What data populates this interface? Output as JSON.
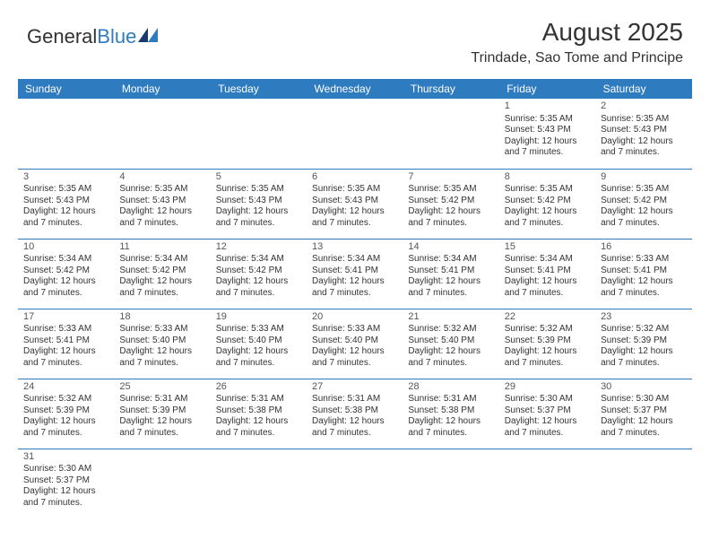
{
  "logo": {
    "text1": "General",
    "text2": "Blue"
  },
  "title": "August 2025",
  "location": "Trindade, Sao Tome and Principe",
  "colors": {
    "header_bg": "#2f7bbf",
    "header_text": "#ffffff",
    "border": "#2f7bbf",
    "text": "#333333",
    "logo_blue": "#2f7bbf"
  },
  "day_headers": [
    "Sunday",
    "Monday",
    "Tuesday",
    "Wednesday",
    "Thursday",
    "Friday",
    "Saturday"
  ],
  "weeks": [
    [
      null,
      null,
      null,
      null,
      null,
      {
        "n": "1",
        "sunrise": "5:35 AM",
        "sunset": "5:43 PM",
        "daylight1": "Daylight: 12 hours",
        "daylight2": "and 7 minutes."
      },
      {
        "n": "2",
        "sunrise": "5:35 AM",
        "sunset": "5:43 PM",
        "daylight1": "Daylight: 12 hours",
        "daylight2": "and 7 minutes."
      }
    ],
    [
      {
        "n": "3",
        "sunrise": "5:35 AM",
        "sunset": "5:43 PM",
        "daylight1": "Daylight: 12 hours",
        "daylight2": "and 7 minutes."
      },
      {
        "n": "4",
        "sunrise": "5:35 AM",
        "sunset": "5:43 PM",
        "daylight1": "Daylight: 12 hours",
        "daylight2": "and 7 minutes."
      },
      {
        "n": "5",
        "sunrise": "5:35 AM",
        "sunset": "5:43 PM",
        "daylight1": "Daylight: 12 hours",
        "daylight2": "and 7 minutes."
      },
      {
        "n": "6",
        "sunrise": "5:35 AM",
        "sunset": "5:43 PM",
        "daylight1": "Daylight: 12 hours",
        "daylight2": "and 7 minutes."
      },
      {
        "n": "7",
        "sunrise": "5:35 AM",
        "sunset": "5:42 PM",
        "daylight1": "Daylight: 12 hours",
        "daylight2": "and 7 minutes."
      },
      {
        "n": "8",
        "sunrise": "5:35 AM",
        "sunset": "5:42 PM",
        "daylight1": "Daylight: 12 hours",
        "daylight2": "and 7 minutes."
      },
      {
        "n": "9",
        "sunrise": "5:35 AM",
        "sunset": "5:42 PM",
        "daylight1": "Daylight: 12 hours",
        "daylight2": "and 7 minutes."
      }
    ],
    [
      {
        "n": "10",
        "sunrise": "5:34 AM",
        "sunset": "5:42 PM",
        "daylight1": "Daylight: 12 hours",
        "daylight2": "and 7 minutes."
      },
      {
        "n": "11",
        "sunrise": "5:34 AM",
        "sunset": "5:42 PM",
        "daylight1": "Daylight: 12 hours",
        "daylight2": "and 7 minutes."
      },
      {
        "n": "12",
        "sunrise": "5:34 AM",
        "sunset": "5:42 PM",
        "daylight1": "Daylight: 12 hours",
        "daylight2": "and 7 minutes."
      },
      {
        "n": "13",
        "sunrise": "5:34 AM",
        "sunset": "5:41 PM",
        "daylight1": "Daylight: 12 hours",
        "daylight2": "and 7 minutes."
      },
      {
        "n": "14",
        "sunrise": "5:34 AM",
        "sunset": "5:41 PM",
        "daylight1": "Daylight: 12 hours",
        "daylight2": "and 7 minutes."
      },
      {
        "n": "15",
        "sunrise": "5:34 AM",
        "sunset": "5:41 PM",
        "daylight1": "Daylight: 12 hours",
        "daylight2": "and 7 minutes."
      },
      {
        "n": "16",
        "sunrise": "5:33 AM",
        "sunset": "5:41 PM",
        "daylight1": "Daylight: 12 hours",
        "daylight2": "and 7 minutes."
      }
    ],
    [
      {
        "n": "17",
        "sunrise": "5:33 AM",
        "sunset": "5:41 PM",
        "daylight1": "Daylight: 12 hours",
        "daylight2": "and 7 minutes."
      },
      {
        "n": "18",
        "sunrise": "5:33 AM",
        "sunset": "5:40 PM",
        "daylight1": "Daylight: 12 hours",
        "daylight2": "and 7 minutes."
      },
      {
        "n": "19",
        "sunrise": "5:33 AM",
        "sunset": "5:40 PM",
        "daylight1": "Daylight: 12 hours",
        "daylight2": "and 7 minutes."
      },
      {
        "n": "20",
        "sunrise": "5:33 AM",
        "sunset": "5:40 PM",
        "daylight1": "Daylight: 12 hours",
        "daylight2": "and 7 minutes."
      },
      {
        "n": "21",
        "sunrise": "5:32 AM",
        "sunset": "5:40 PM",
        "daylight1": "Daylight: 12 hours",
        "daylight2": "and 7 minutes."
      },
      {
        "n": "22",
        "sunrise": "5:32 AM",
        "sunset": "5:39 PM",
        "daylight1": "Daylight: 12 hours",
        "daylight2": "and 7 minutes."
      },
      {
        "n": "23",
        "sunrise": "5:32 AM",
        "sunset": "5:39 PM",
        "daylight1": "Daylight: 12 hours",
        "daylight2": "and 7 minutes."
      }
    ],
    [
      {
        "n": "24",
        "sunrise": "5:32 AM",
        "sunset": "5:39 PM",
        "daylight1": "Daylight: 12 hours",
        "daylight2": "and 7 minutes."
      },
      {
        "n": "25",
        "sunrise": "5:31 AM",
        "sunset": "5:39 PM",
        "daylight1": "Daylight: 12 hours",
        "daylight2": "and 7 minutes."
      },
      {
        "n": "26",
        "sunrise": "5:31 AM",
        "sunset": "5:38 PM",
        "daylight1": "Daylight: 12 hours",
        "daylight2": "and 7 minutes."
      },
      {
        "n": "27",
        "sunrise": "5:31 AM",
        "sunset": "5:38 PM",
        "daylight1": "Daylight: 12 hours",
        "daylight2": "and 7 minutes."
      },
      {
        "n": "28",
        "sunrise": "5:31 AM",
        "sunset": "5:38 PM",
        "daylight1": "Daylight: 12 hours",
        "daylight2": "and 7 minutes."
      },
      {
        "n": "29",
        "sunrise": "5:30 AM",
        "sunset": "5:37 PM",
        "daylight1": "Daylight: 12 hours",
        "daylight2": "and 7 minutes."
      },
      {
        "n": "30",
        "sunrise": "5:30 AM",
        "sunset": "5:37 PM",
        "daylight1": "Daylight: 12 hours",
        "daylight2": "and 7 minutes."
      }
    ],
    [
      {
        "n": "31",
        "sunrise": "5:30 AM",
        "sunset": "5:37 PM",
        "daylight1": "Daylight: 12 hours",
        "daylight2": "and 7 minutes."
      },
      null,
      null,
      null,
      null,
      null,
      null
    ]
  ],
  "labels": {
    "sunrise": "Sunrise:",
    "sunset": "Sunset:"
  }
}
